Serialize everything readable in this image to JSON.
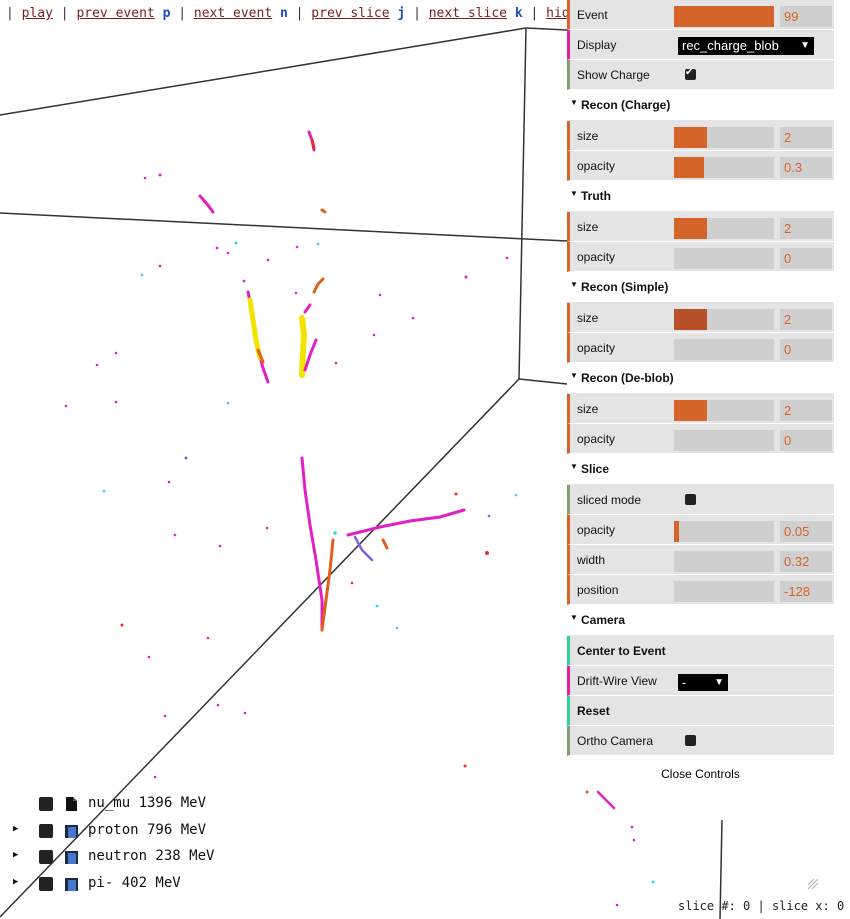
{
  "topbar": {
    "play": "play",
    "prev_event": "prev event",
    "prev_event_key": "p",
    "next_event": "next event",
    "next_event_key": "n",
    "prev_slice": "prev slice",
    "prev_slice_key": "j",
    "next_slice": "next slice",
    "next_slice_key": "k",
    "hide_mc": "hide MC"
  },
  "controls": {
    "event": {
      "label": "Event",
      "value": "99",
      "fill": 1.0
    },
    "display": {
      "label": "Display",
      "value": "rec_charge_blob"
    },
    "show_charge": {
      "label": "Show Charge",
      "checked": true
    },
    "recon_charge": {
      "title": "Recon (Charge)",
      "size_label": "size",
      "size_value": "2",
      "size_fill": 0.33,
      "opacity_label": "opacity",
      "opacity_value": "0.3",
      "opacity_fill": 0.3
    },
    "truth": {
      "title": "Truth",
      "size_label": "size",
      "size_value": "2",
      "size_fill": 0.33,
      "opacity_label": "opacity",
      "opacity_value": "0",
      "opacity_fill": 0
    },
    "recon_simple": {
      "title": "Recon (Simple)",
      "size_label": "size",
      "size_value": "2",
      "size_fill": 0.33,
      "opacity_label": "opacity",
      "opacity_value": "0",
      "opacity_fill": 0
    },
    "recon_deblob": {
      "title": "Recon (De-blob)",
      "size_label": "size",
      "size_value": "2",
      "size_fill": 0.33,
      "opacity_label": "opacity",
      "opacity_value": "0",
      "opacity_fill": 0
    },
    "slice": {
      "title": "Slice",
      "sliced_mode_label": "sliced mode",
      "sliced_mode": false,
      "opacity_label": "opacity",
      "opacity_value": "0.05",
      "opacity_fill": 0.05,
      "width_label": "width",
      "width_value": "0.32",
      "width_fill": 0,
      "position_label": "position",
      "position_value": "-128",
      "position_fill": 0
    },
    "camera": {
      "title": "Camera",
      "center_label": "Center to Event",
      "drift_label": "Drift-Wire View",
      "drift_value": "-",
      "reset_label": "Reset",
      "ortho_label": "Ortho Camera",
      "ortho": false
    },
    "close_label": "Close Controls"
  },
  "tree": [
    {
      "label": "nu_mu 1396 MeV",
      "icon": "file-icon",
      "expandable": false
    },
    {
      "label": "proton 796 MeV",
      "icon": "folder-icon",
      "expandable": true
    },
    {
      "label": "neutron 238 MeV",
      "icon": "folder-icon",
      "expandable": true
    },
    {
      "label": "pi- 402 MeV",
      "icon": "folder-icon",
      "expandable": true
    }
  ],
  "status": {
    "slice_num_label": "slice #:",
    "slice_num": "0",
    "slice_x_label": "slice x:",
    "slice_x": "0"
  },
  "colors": {
    "accent": "#d4642a",
    "magenta": "#e020c0",
    "yellow": "#f2e400",
    "orange": "#e0601a",
    "cyan": "#40d0f0"
  }
}
